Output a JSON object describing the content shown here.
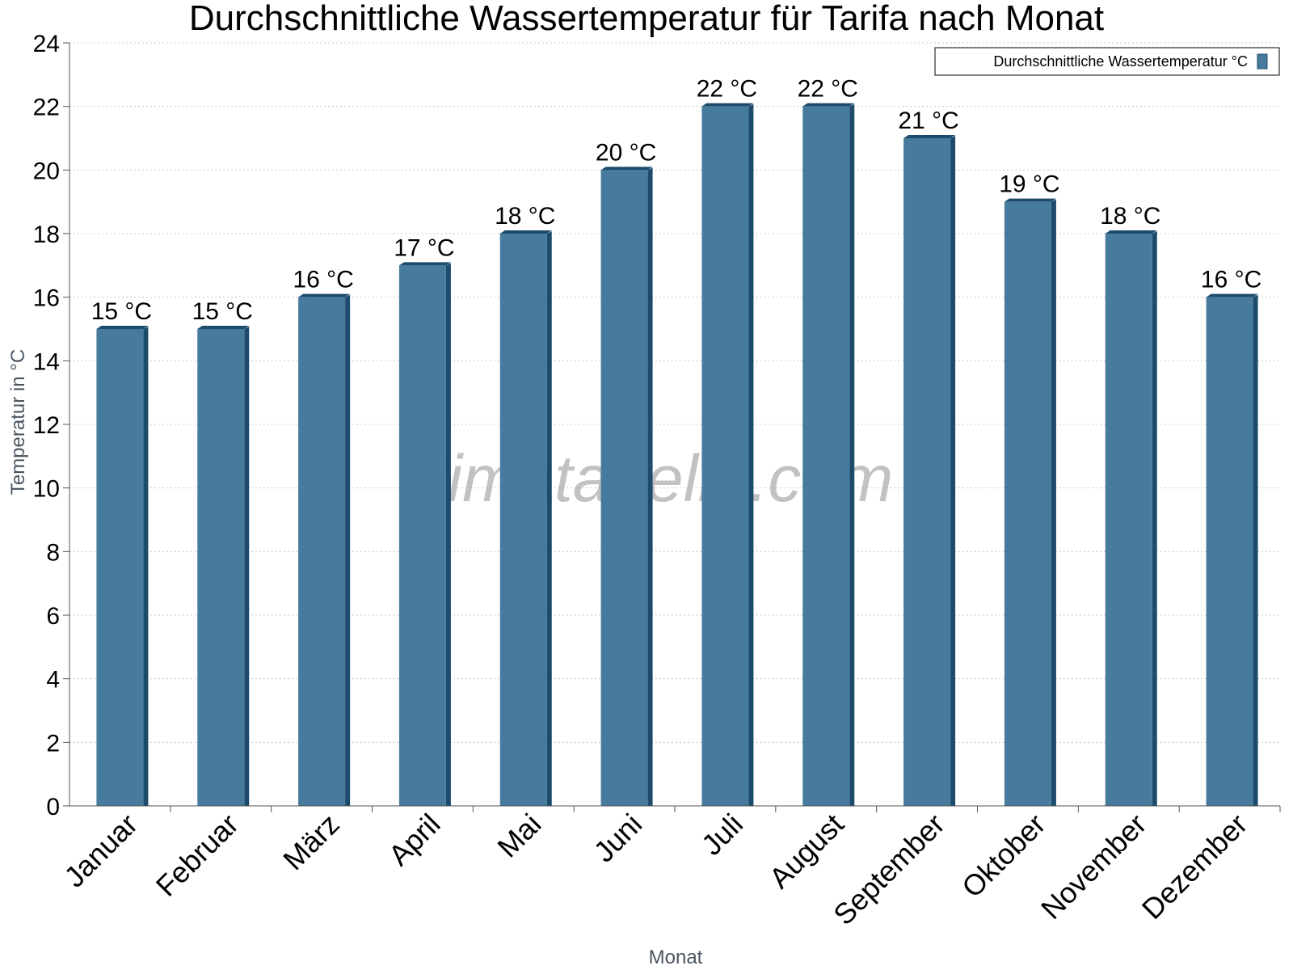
{
  "chart_data": {
    "type": "bar",
    "title": "Durchschnittliche Wassertemperatur für Tarifa nach Monat",
    "xlabel": "Monat",
    "ylabel": "Temperatur in °C",
    "ylim": [
      0,
      24
    ],
    "yticks": [
      0,
      2,
      4,
      6,
      8,
      10,
      12,
      14,
      16,
      18,
      20,
      22,
      24
    ],
    "grid": true,
    "legend": {
      "position": "top-right",
      "entries": [
        "Durchschnittliche Wassertemperatur °C"
      ]
    },
    "categories": [
      "Januar",
      "Februar",
      "März",
      "April",
      "Mai",
      "Juni",
      "Juli",
      "August",
      "September",
      "Oktober",
      "November",
      "Dezember"
    ],
    "series": [
      {
        "name": "Durchschnittliche Wassertemperatur °C",
        "values": [
          15,
          15,
          16,
          17,
          18,
          20,
          22,
          22,
          21,
          19,
          18,
          16
        ],
        "data_labels": [
          "15 °C",
          "15 °C",
          "16 °C",
          "17 °C",
          "18 °C",
          "20 °C",
          "22 °C",
          "22 °C",
          "21 °C",
          "19 °C",
          "18 °C",
          "16 °C"
        ]
      }
    ],
    "colors": {
      "bar": "#467b9d",
      "bar_side": "#1d4b6b",
      "gridline": "#c8c8c8",
      "axis": "#555555"
    }
  },
  "watermark": "klimatabelle.com"
}
